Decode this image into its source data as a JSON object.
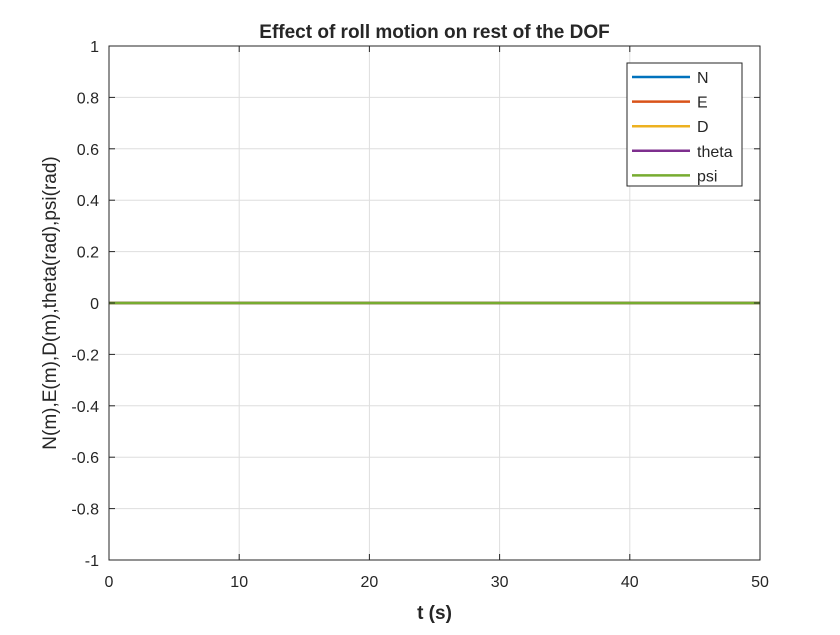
{
  "chart_data": {
    "type": "line",
    "title": "Effect of roll motion on rest of the DOF",
    "xlabel": "t (s)",
    "ylabel": "N(m),E(m),D(m),theta(rad),psi(rad)",
    "xlim": [
      0,
      50
    ],
    "ylim": [
      -1,
      1
    ],
    "x_ticks": [
      0,
      10,
      20,
      30,
      40,
      50
    ],
    "x_tick_labels": [
      "0",
      "10",
      "20",
      "30",
      "40",
      "50"
    ],
    "y_ticks": [
      -1,
      -0.8,
      -0.6,
      -0.4,
      -0.2,
      0,
      0.2,
      0.4,
      0.6,
      0.8,
      1
    ],
    "y_tick_labels": [
      "-1",
      "-0.8",
      "-0.6",
      "-0.4",
      "-0.2",
      "0",
      "0.2",
      "0.4",
      "0.6",
      "0.8",
      "1"
    ],
    "grid": true,
    "legend_position": "top-right",
    "x": [
      0,
      50
    ],
    "series": [
      {
        "name": "N",
        "color": "#0072BD",
        "values": [
          0,
          0
        ]
      },
      {
        "name": "E",
        "color": "#D95319",
        "values": [
          0,
          0
        ]
      },
      {
        "name": "D",
        "color": "#EDB120",
        "values": [
          0,
          0
        ]
      },
      {
        "name": "theta",
        "color": "#7E2F8E",
        "values": [
          0,
          0
        ]
      },
      {
        "name": "psi",
        "color": "#77AC30",
        "values": [
          0,
          0
        ]
      }
    ]
  }
}
